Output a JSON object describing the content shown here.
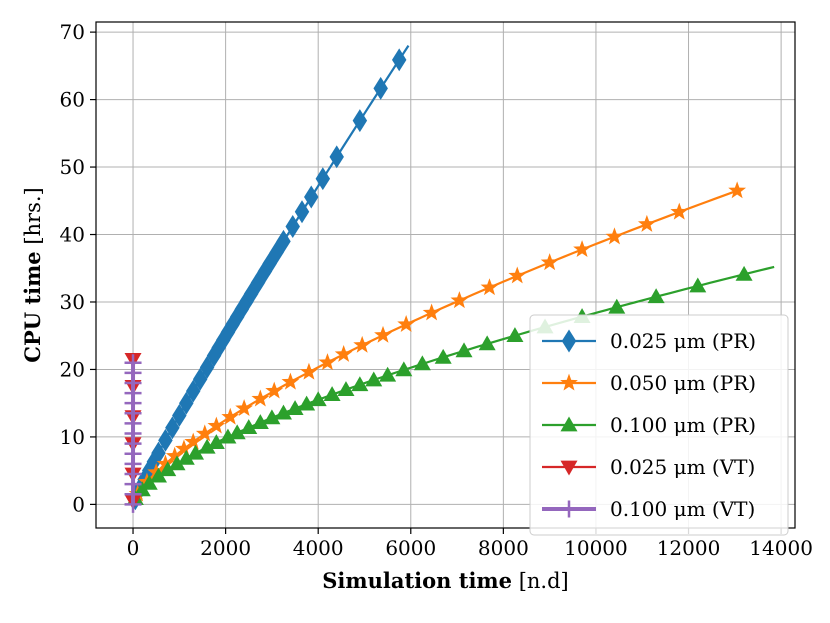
{
  "chart_data": {
    "type": "line",
    "title": "",
    "xlabel_bold": "Simulation time",
    "xlabel_unit": " [n.d]",
    "ylabel_bold": "CPU time",
    "ylabel_unit": " [hrs.]",
    "xlim": [
      -800,
      14300
    ],
    "ylim": [
      -3.5,
      71.5
    ],
    "xticks": [
      0,
      2000,
      4000,
      6000,
      8000,
      10000,
      12000,
      14000
    ],
    "xtick_labels": [
      "0",
      "2000",
      "4000",
      "6000",
      "8000",
      "10000",
      "12000",
      "14000"
    ],
    "yticks": [
      0,
      10,
      20,
      30,
      40,
      50,
      60,
      70
    ],
    "ytick_labels": [
      "0",
      "10",
      "20",
      "30",
      "40",
      "50",
      "60",
      "70"
    ],
    "grid": true,
    "legend_position": "lower-right",
    "series": [
      {
        "name": "0.025 μm (PR)",
        "color": "#1f77b4",
        "marker": "diamond",
        "x_start": 0,
        "x_end": 5950,
        "y_start": 0,
        "y_end": 68.0,
        "curve": 0.92,
        "marker_x": [
          50,
          150,
          250,
          350,
          450,
          550,
          700,
          850,
          1000,
          1150,
          1300,
          1450,
          1600,
          1750,
          1850,
          1950,
          2050,
          2150,
          2250,
          2350,
          2450,
          2550,
          2700,
          2850,
          2950,
          3100,
          3250,
          3450,
          3650,
          3850,
          4100,
          4400,
          4900,
          5350,
          5750
        ]
      },
      {
        "name": "0.050 μm (PR)",
        "color": "#ff7f0e",
        "marker": "star",
        "x_start": 0,
        "x_end": 13050,
        "y_start": 0,
        "y_end": 46.5,
        "curve": 0.7,
        "marker_x": [
          100,
          300,
          500,
          700,
          900,
          1100,
          1300,
          1550,
          1800,
          2100,
          2400,
          2750,
          3050,
          3400,
          3800,
          4200,
          4550,
          4950,
          5400,
          5900,
          6450,
          7050,
          7700,
          8300,
          9000,
          9700,
          10400,
          11100,
          11800,
          13050
        ]
      },
      {
        "name": "0.100 μm (PR)",
        "color": "#2ca02c",
        "marker": "triangle-up",
        "x_start": 0,
        "x_end": 13850,
        "y_start": 0,
        "y_end": 35.2,
        "curve": 0.66,
        "marker_x": [
          50,
          200,
          350,
          550,
          750,
          950,
          1150,
          1350,
          1600,
          1800,
          2050,
          2250,
          2500,
          2750,
          3000,
          3250,
          3500,
          3750,
          4000,
          4300,
          4600,
          4900,
          5200,
          5500,
          5850,
          6250,
          6700,
          7150,
          7650,
          8250,
          8900,
          9700,
          10450,
          11300,
          12200,
          13200
        ]
      },
      {
        "name": "0.025 μm (VT)",
        "color": "#d62728",
        "marker": "triangle-down",
        "x": 0,
        "y_values": [
          0.5,
          4.5,
          9,
          13,
          17.5,
          21.5
        ]
      },
      {
        "name": "0.100 μm (VT)",
        "color": "#9467bd",
        "marker": "plus",
        "x": 0,
        "y_values": [
          0,
          1.5,
          3,
          4.5,
          6,
          7.5,
          9,
          10.5,
          12,
          13.5,
          15,
          16.5,
          18,
          19.5,
          21
        ]
      }
    ]
  }
}
